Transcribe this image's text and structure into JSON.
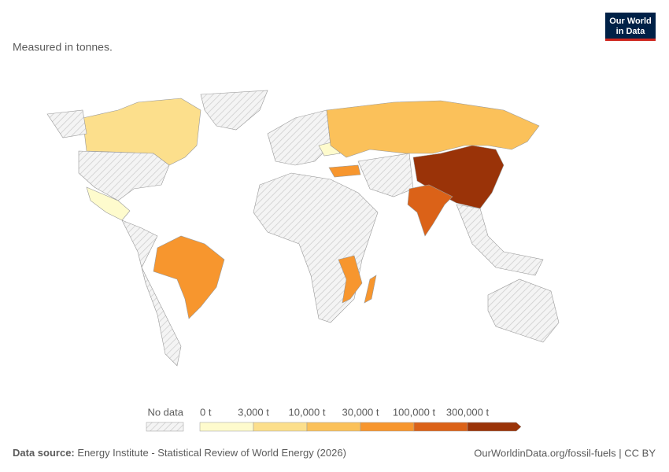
{
  "header": {
    "subtitle": "Measured in tonnes.",
    "logo": [
      "Our World",
      "in Data"
    ]
  },
  "legend": {
    "no_data": "No data",
    "labels": [
      "0 t",
      "3,000 t",
      "10,000 t",
      "30,000 t",
      "100,000 t",
      "300,000 t"
    ],
    "colors": [
      "#fefbcd",
      "#fcdf8c",
      "#fbc15a",
      "#f7962e",
      "#db6218",
      "#9a3308"
    ]
  },
  "footer": {
    "source_label": "Data source:",
    "source": "Energy Institute - Statistical Review of World Energy (2026)",
    "link": "OurWorldinData.org/fossil-fuels | CC BY"
  }
}
